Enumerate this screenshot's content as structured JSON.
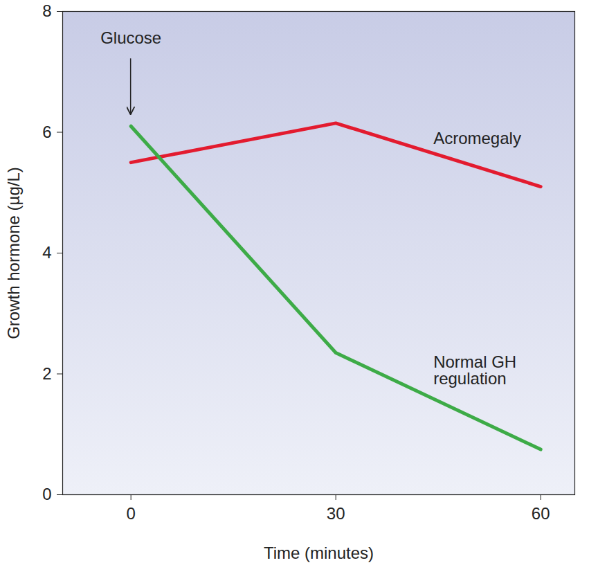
{
  "chart_data": {
    "type": "line",
    "x_label": "Time (minutes)",
    "y_label": "Growth hormone (µg/L)",
    "x": [
      0,
      30,
      60
    ],
    "series": [
      {
        "name": "Acromegaly",
        "color": "#e31b2f",
        "values": [
          5.5,
          6.15,
          5.1
        ]
      },
      {
        "name": "Normal GH regulation",
        "color": "#3dab47",
        "values": [
          6.1,
          2.35,
          0.75
        ]
      }
    ],
    "xlim": [
      -10,
      65
    ],
    "xticks": [
      0,
      30,
      60
    ],
    "ylim": [
      0,
      8
    ],
    "yticks": [
      0,
      2,
      4,
      6,
      8
    ],
    "annotations": [
      {
        "text": "Glucose",
        "x": 0,
        "y": 6.3
      }
    ]
  }
}
